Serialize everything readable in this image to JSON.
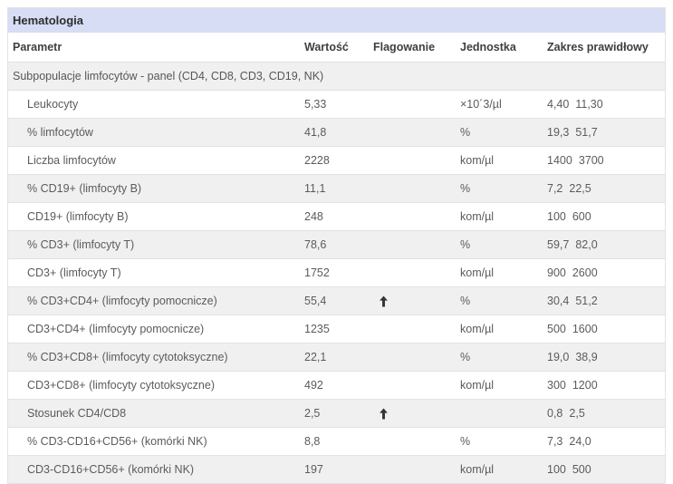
{
  "panel": {
    "title": "Hematologia"
  },
  "table": {
    "columns": {
      "param": "Parametr",
      "value": "Wartość",
      "flag": "Flagowanie",
      "unit": "Jednostka",
      "range": "Zakres prawidłowy"
    },
    "section": "Subpopulacje limfocytów - panel (CD4, CD8, CD3, CD19, NK)",
    "rows": [
      {
        "param": "Leukocyty",
        "value": "5,33",
        "flag": "",
        "unit": "×10´3/µl",
        "range_low": "4,40",
        "range_high": "11,30"
      },
      {
        "param": "% limfocytów",
        "value": "41,8",
        "flag": "",
        "unit": "%",
        "range_low": "19,3",
        "range_high": "51,7"
      },
      {
        "param": "Liczba limfocytów",
        "value": "2228",
        "flag": "",
        "unit": "kom/µl",
        "range_low": "1400",
        "range_high": "3700"
      },
      {
        "param": "% CD19+ (limfocyty B)",
        "value": "11,1",
        "flag": "",
        "unit": "%",
        "range_low": "7,2",
        "range_high": "22,5"
      },
      {
        "param": "CD19+ (limfocyty B)",
        "value": "248",
        "flag": "",
        "unit": "kom/µl",
        "range_low": "100",
        "range_high": "600"
      },
      {
        "param": "% CD3+ (limfocyty T)",
        "value": "78,6",
        "flag": "",
        "unit": "%",
        "range_low": "59,7",
        "range_high": "82,0"
      },
      {
        "param": "CD3+ (limfocyty T)",
        "value": "1752",
        "flag": "",
        "unit": "kom/µl",
        "range_low": "900",
        "range_high": "2600"
      },
      {
        "param": "% CD3+CD4+ (limfocyty pomocnicze)",
        "value": "55,4",
        "flag": "up",
        "unit": "%",
        "range_low": "30,4",
        "range_high": "51,2"
      },
      {
        "param": "CD3+CD4+ (limfocyty pomocnicze)",
        "value": "1235",
        "flag": "",
        "unit": "kom/µl",
        "range_low": "500",
        "range_high": "1600"
      },
      {
        "param": "% CD3+CD8+ (limfocyty cytotoksyczne)",
        "value": "22,1",
        "flag": "",
        "unit": "%",
        "range_low": "19,0",
        "range_high": "38,9"
      },
      {
        "param": "CD3+CD8+ (limfocyty cytotoksyczne)",
        "value": "492",
        "flag": "",
        "unit": "kom/µl",
        "range_low": "300",
        "range_high": "1200"
      },
      {
        "param": "Stosunek CD4/CD8",
        "value": "2,5",
        "flag": "up",
        "unit": "",
        "range_low": "0,8",
        "range_high": "2,5"
      },
      {
        "param": "% CD3-CD16+CD56+ (komórki NK)",
        "value": "8,8",
        "flag": "",
        "unit": "%",
        "range_low": "7,3",
        "range_high": "24,0"
      },
      {
        "param": "CD3-CD16+CD56+ (komórki NK)",
        "value": "197",
        "flag": "",
        "unit": "kom/µl",
        "range_low": "100",
        "range_high": "500"
      }
    ]
  },
  "icons": {
    "flag_up": "arrow-up-icon"
  },
  "colors": {
    "panel_header_bg": "#d7ddf4",
    "row_alt_bg": "#f0f0f0",
    "row_border": "#e2e2e2",
    "flag_color": "#333333",
    "header_text": "#3f3f3f",
    "body_text": "#5b5b5b"
  }
}
